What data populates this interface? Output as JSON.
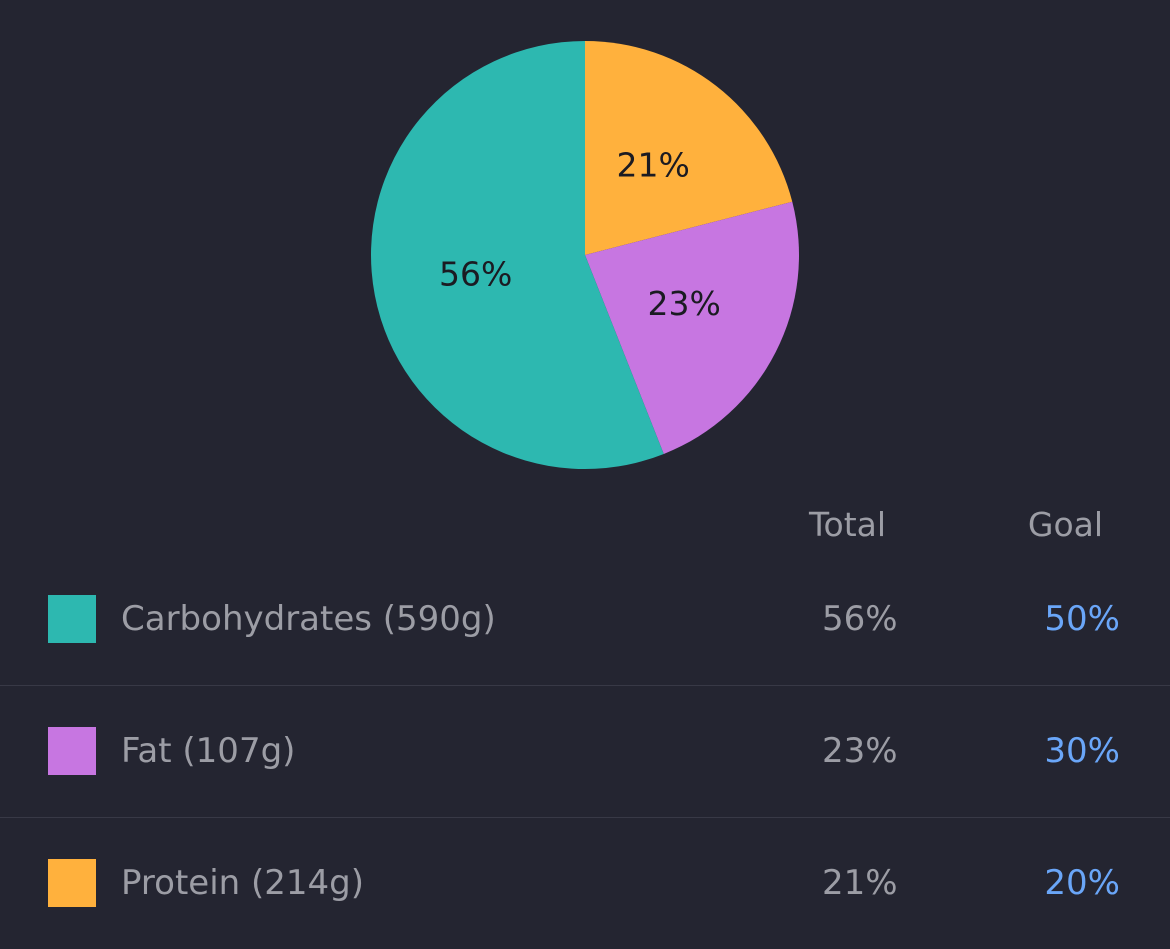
{
  "chart_data": {
    "type": "pie",
    "slices": [
      {
        "label": "Protein (214g)",
        "value": 21,
        "display": "21%",
        "color": "#FFB13D"
      },
      {
        "label": "Fat (107g)",
        "value": 23,
        "display": "23%",
        "color": "#C776E1"
      },
      {
        "label": "Carbohydrates (590g)",
        "value": 56,
        "display": "56%",
        "color": "#2DB8B0"
      }
    ]
  },
  "table": {
    "headers": {
      "total": "Total",
      "goal": "Goal"
    },
    "goal_color": "#6AA6F8",
    "rows": [
      {
        "name": "Carbohydrates (590g)",
        "total": "56%",
        "goal": "50%",
        "color": "#2DB8B0"
      },
      {
        "name": "Fat (107g)",
        "total": "23%",
        "goal": "30%",
        "color": "#C776E1"
      },
      {
        "name": "Protein (214g)",
        "total": "21%",
        "goal": "20%",
        "color": "#FFB13D"
      }
    ]
  }
}
